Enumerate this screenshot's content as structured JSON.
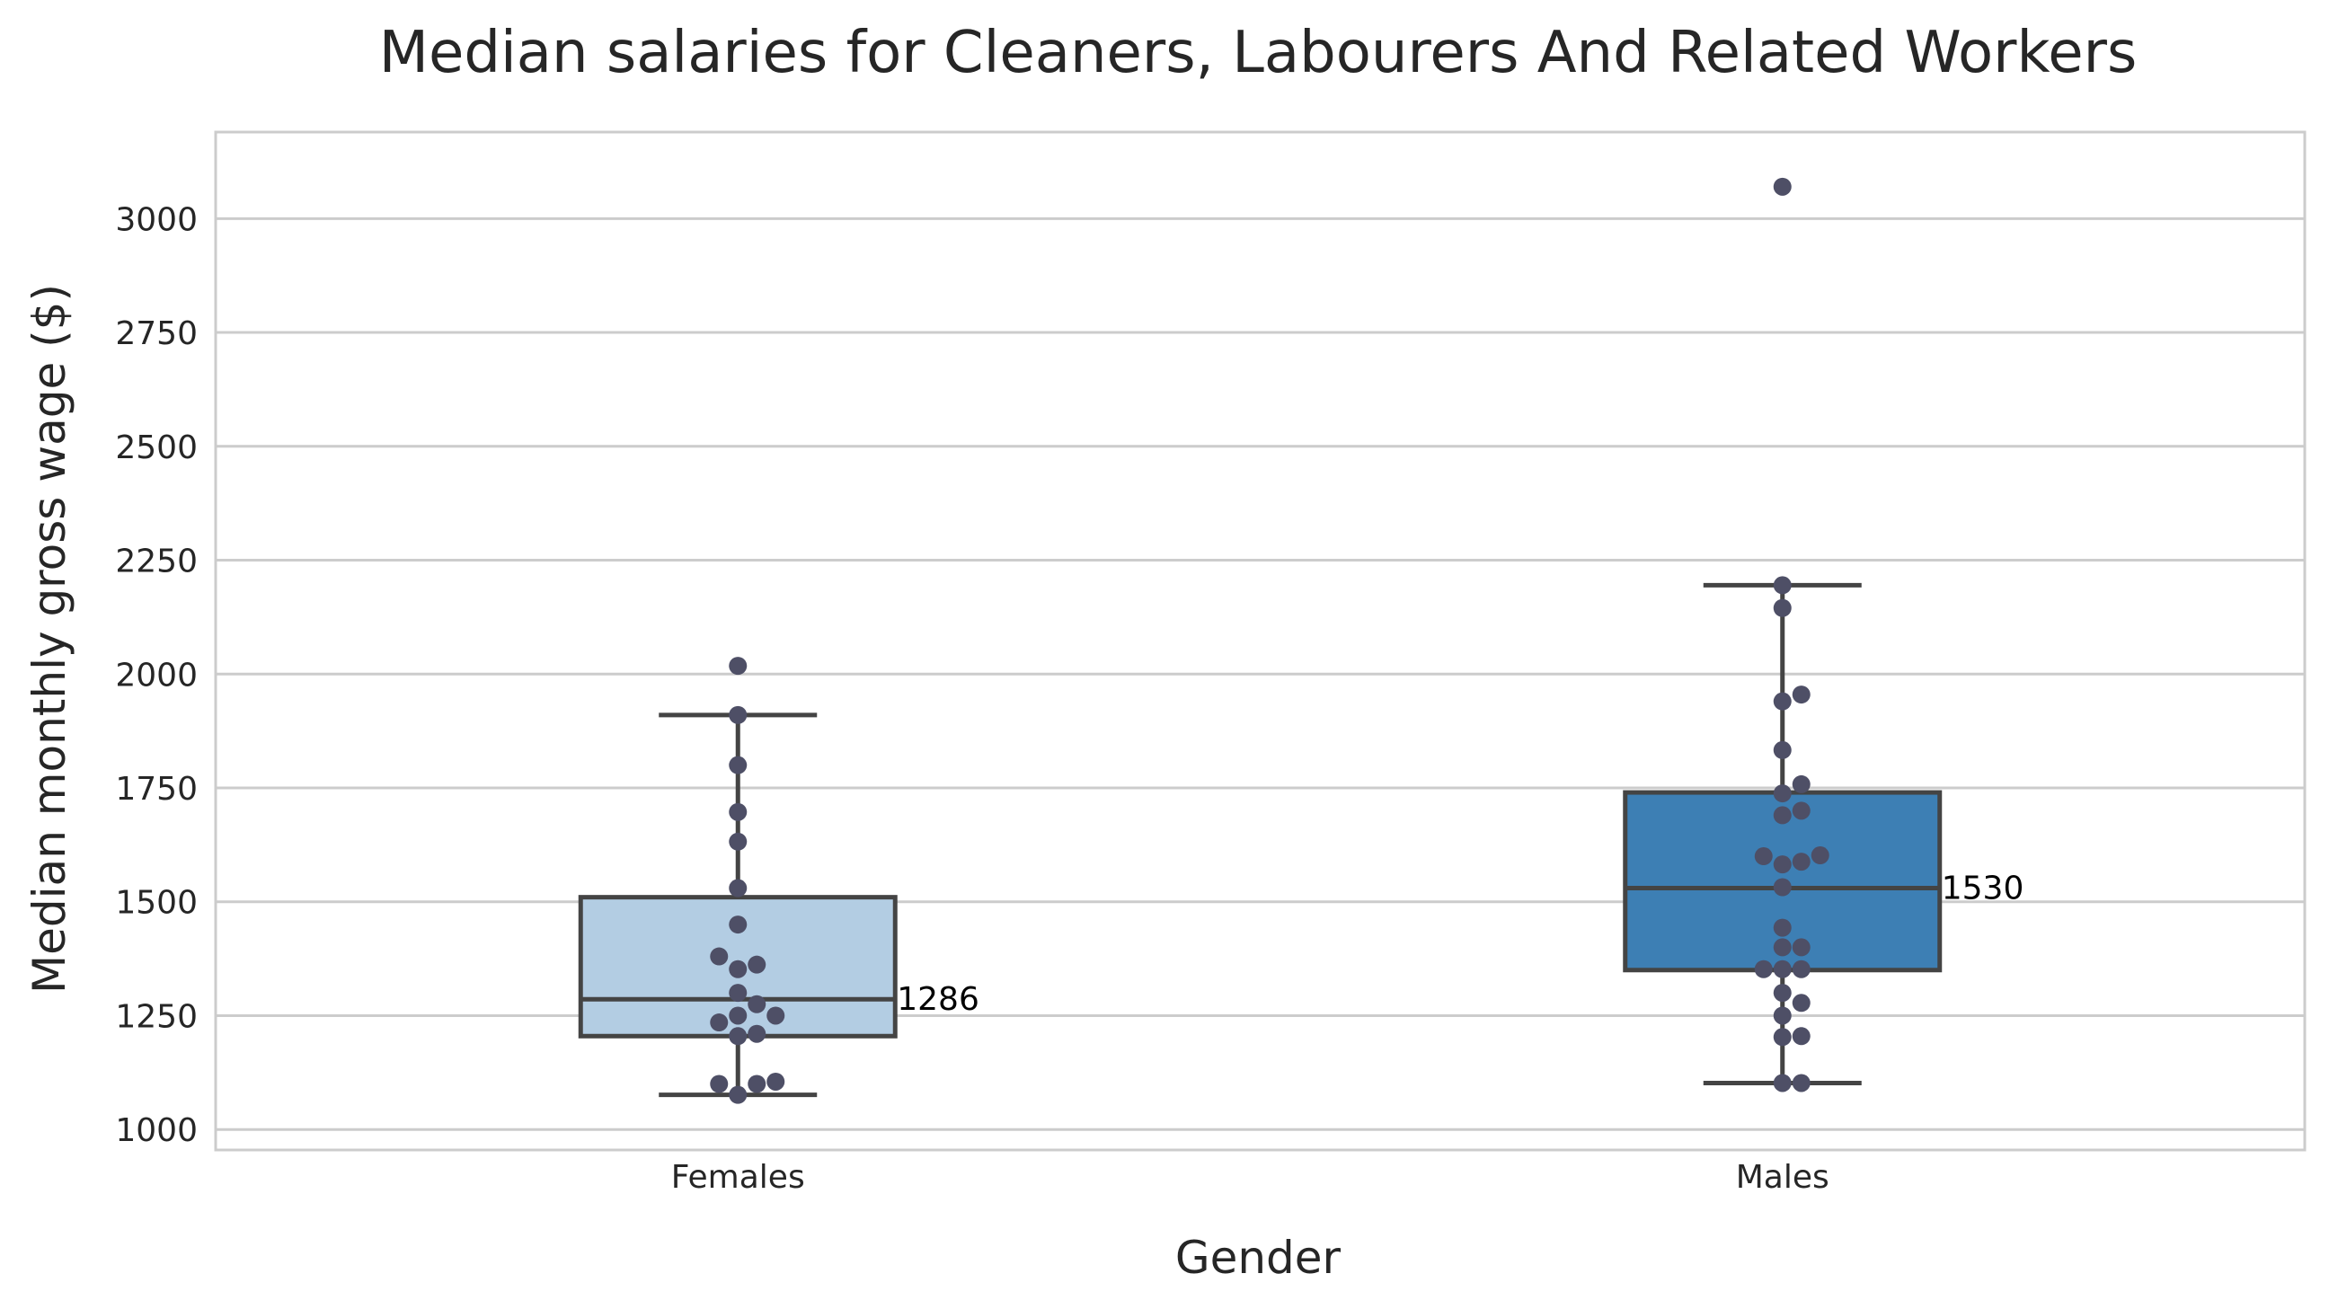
{
  "chart_data": {
    "type": "box",
    "title": "Median salaries for Cleaners, Labourers And Related Workers",
    "xlabel": "Gender",
    "ylabel": "Median monthly gross wage ($)",
    "ylim": [
      955,
      3190
    ],
    "yticks": [
      1000,
      1250,
      1500,
      1750,
      2000,
      2250,
      2500,
      2750,
      3000
    ],
    "ytick_labels": [
      "1000",
      "1250",
      "1500",
      "1750",
      "2000",
      "2250",
      "2500",
      "2750",
      "3000"
    ],
    "grid": "horizontal",
    "categories": [
      "Females",
      "Males"
    ],
    "boxes": [
      {
        "category": "Females",
        "color": "#b3cde3",
        "whisker_low": 1076,
        "q1": 1205,
        "median": 1286,
        "q3": 1510,
        "whisker_high": 1910,
        "median_label": "1286",
        "points": [
          2018,
          1910,
          1800,
          1697,
          1632,
          1530,
          1450,
          1380,
          1362,
          1352,
          1300,
          1275,
          1250,
          1250,
          1235,
          1210,
          1205,
          1105,
          1100,
          1100,
          1076
        ]
      },
      {
        "category": "Males",
        "color": "#3d7fb4",
        "whisker_low": 1102,
        "q1": 1350,
        "median": 1530,
        "q3": 1740,
        "whisker_high": 2195,
        "median_label": "1530",
        "points": [
          3070,
          2195,
          2145,
          1955,
          1940,
          1833,
          1758,
          1738,
          1700,
          1690,
          1602,
          1600,
          1588,
          1582,
          1532,
          1443,
          1400,
          1400,
          1352,
          1352,
          1352,
          1300,
          1278,
          1250,
          1205,
          1203,
          1102,
          1102
        ]
      }
    ],
    "colors": {
      "point": "#4e4f66",
      "box_edge": "#444444",
      "grid": "#cccccc",
      "axis_frame": "#cccccc",
      "text": "#262626"
    }
  }
}
